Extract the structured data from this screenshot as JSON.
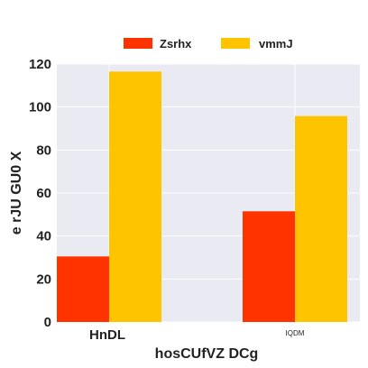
{
  "chart_data": {
    "type": "bar",
    "title": "",
    "xlabel": "hosCUfVZ DCg",
    "ylabel": "e rJU GU0 X",
    "categories": [
      "HnDL",
      "IQDM"
    ],
    "series": [
      {
        "name": "Zsrhx",
        "values": [
          30.5,
          51.5
        ],
        "color": "#ff3300"
      },
      {
        "name": "vmmJ",
        "values": [
          116.5,
          95.8
        ],
        "color": "#ffc400"
      }
    ],
    "ylim": [
      0,
      120
    ],
    "yticks": [
      0,
      20,
      40,
      60,
      80,
      100,
      120
    ],
    "grid": true,
    "legend_position": "top-center",
    "background_color": "#eaeaf2"
  }
}
